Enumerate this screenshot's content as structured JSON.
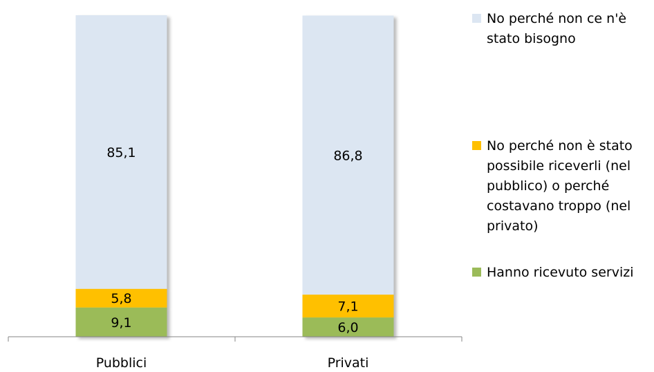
{
  "chart_data": {
    "type": "bar",
    "stacked": true,
    "categories": [
      "Pubblici",
      "Privati"
    ],
    "series": [
      {
        "name": "Hanno ricevuto servizi",
        "values": [
          9.1,
          6.0
        ],
        "labels": [
          "9,1",
          "6,0"
        ],
        "color": "#9BBB59"
      },
      {
        "name": "No perché non è stato possibile riceverli (nel pubblico) o perché costavano troppo (nel privato)",
        "values": [
          5.8,
          7.1
        ],
        "labels": [
          "5,8",
          "7,1"
        ],
        "color": "#FFC000"
      },
      {
        "name": "No perché non ce n'è stato bisogno",
        "values": [
          85.1,
          86.8
        ],
        "labels": [
          "85,1",
          "86,8"
        ],
        "color": "#DCE6F2"
      }
    ],
    "legend_order": [
      2,
      1,
      0
    ],
    "legend_lines": [
      [
        "No perché non ce n'è",
        "stato bisogno"
      ],
      [
        "No perché non è stato",
        "possibile riceverli (nel",
        "pubblico) o perché",
        "costavano troppo (nel",
        "privato)"
      ],
      [
        "Hanno ricevuto servizi"
      ]
    ],
    "ylim": [
      0,
      100
    ],
    "legend_position": "right",
    "grid": false,
    "title": "",
    "xlabel": "",
    "ylabel": ""
  }
}
